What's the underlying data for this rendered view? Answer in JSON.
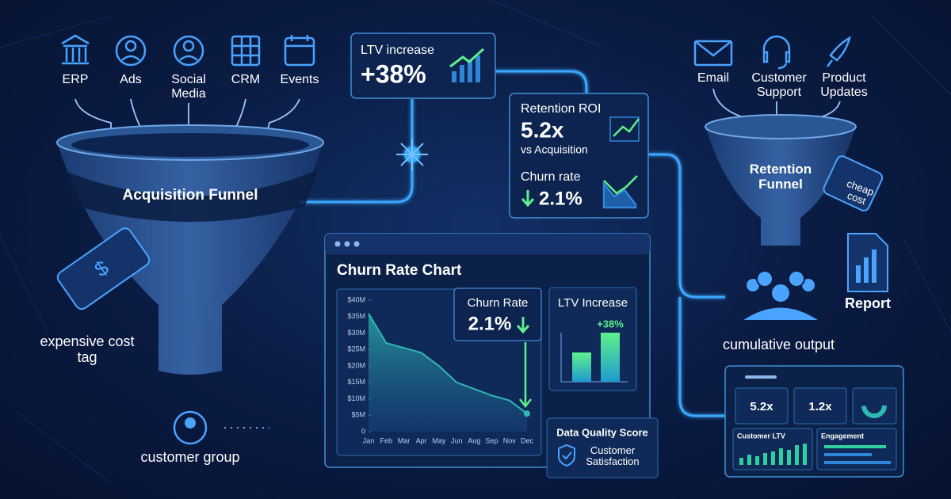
{
  "sources": [
    "ERP",
    "Ads",
    "Social Media",
    "CRM",
    "Events"
  ],
  "acquisition_funnel": {
    "label": "Acquisition Funnel",
    "tag": "expensive cost tag",
    "group": "customer group"
  },
  "ltv_card": {
    "label": "LTV increase",
    "value": "+38%"
  },
  "retention_card": {
    "roi_label": "Retention ROI",
    "roi_value": "5.2x",
    "roi_note": "vs Acquisition",
    "churn_label": "Churn rate",
    "churn_value": "2.1%"
  },
  "retention_sources": [
    "Email",
    "Customer Support",
    "Product Updates"
  ],
  "retention_funnel": {
    "label": "Retention Funnel",
    "tag": "cheap cost",
    "report": "Report",
    "output": "cumulative output"
  },
  "chart_data": {
    "type": "area",
    "title": "Churn Rate Chart",
    "categories": [
      "Jan",
      "Feb",
      "Mar",
      "Apr",
      "May",
      "Jun",
      "Aug",
      "Sep",
      "Nov",
      "Dec"
    ],
    "values": [
      36000000,
      27000000,
      25500000,
      24000000,
      20000000,
      15000000,
      13000000,
      11000000,
      9500000,
      5500000
    ],
    "color": "#2fb8b0",
    "ylim": [
      0,
      40000000
    ],
    "yticks": [
      0,
      {
        "value": 5000000,
        "label": "$5M"
      },
      {
        "value": 10000000,
        "label": "$10M"
      },
      {
        "value": 15000000,
        "label": "$15M"
      },
      {
        "value": 20000000,
        "label": "$20M"
      },
      {
        "value": 25000000,
        "label": "$25M"
      },
      {
        "value": 30000000,
        "label": "$30M"
      },
      {
        "value": 35000000,
        "label": "$35M"
      },
      {
        "value": 40000000,
        "label": "$40M"
      }
    ]
  },
  "churn_callout": {
    "label": "Churn Rate",
    "value": "2.1%"
  },
  "ltv_mini": {
    "title": "LTV Increase",
    "value": "+38%"
  },
  "quality": {
    "title": "Data Quality Score",
    "item": "Customer Satisfaction"
  },
  "dashboard": {
    "tiles": [
      "5.2x",
      "1.2x"
    ],
    "panels": [
      "Customer LTV",
      "Engagement"
    ]
  }
}
